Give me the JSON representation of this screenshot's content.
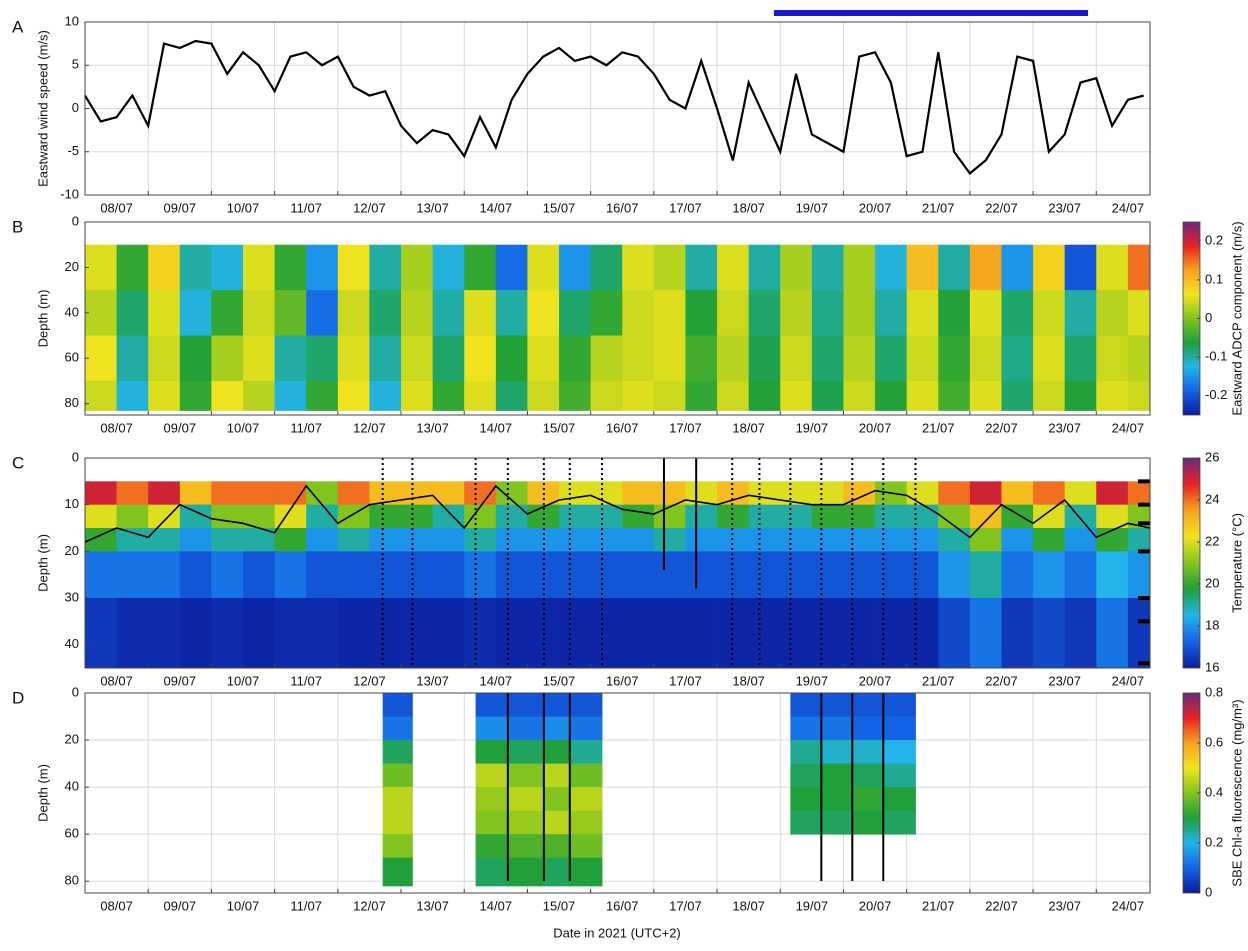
{
  "x_axis": {
    "xlim": [
      8,
      24.85
    ],
    "xlabel": "Date in 2021 (UTC+2)",
    "xticks": [
      {
        "value": 8,
        "label": "08/07"
      },
      {
        "value": 9,
        "label": "09/07"
      },
      {
        "value": 10,
        "label": "10/07"
      },
      {
        "value": 11,
        "label": "11/07"
      },
      {
        "value": 12,
        "label": "12/07"
      },
      {
        "value": 13,
        "label": "13/07"
      },
      {
        "value": 14,
        "label": "14/07"
      },
      {
        "value": 15,
        "label": "15/07"
      },
      {
        "value": 16,
        "label": "16/07"
      },
      {
        "value": 17,
        "label": "17/07"
      },
      {
        "value": 18,
        "label": "18/07"
      },
      {
        "value": 19,
        "label": "19/07"
      },
      {
        "value": 20,
        "label": "20/07"
      },
      {
        "value": 21,
        "label": "21/07"
      },
      {
        "value": 22,
        "label": "22/07"
      },
      {
        "value": 23,
        "label": "23/07"
      },
      {
        "value": 24,
        "label": "24/07"
      }
    ]
  },
  "colormap": [
    "#0c1a9c",
    "#1464e6",
    "#22b4ea",
    "#1fa03a",
    "#82c41e",
    "#f2e41e",
    "#f6a21e",
    "#e82222",
    "#6a2a82"
  ],
  "chart_data": [
    {
      "type": "line",
      "panel": "A",
      "ylabel": "Eastward wind speed (m/s)",
      "color": "#000000",
      "grid": true,
      "ylim": [
        -10,
        10
      ],
      "yticks": [
        -10,
        -5,
        0,
        5,
        10
      ],
      "highlight": [
        18.9,
        23.87
      ],
      "highlight_color": "#1a1acc",
      "x": [
        8,
        8.25,
        8.5,
        8.75,
        9,
        9.25,
        9.5,
        9.75,
        10,
        10.25,
        10.5,
        10.75,
        11,
        11.25,
        11.5,
        11.75,
        12,
        12.25,
        12.5,
        12.75,
        13,
        13.25,
        13.5,
        13.75,
        14,
        14.25,
        14.5,
        14.75,
        15,
        15.25,
        15.5,
        15.75,
        16,
        16.25,
        16.5,
        16.75,
        17,
        17.25,
        17.5,
        17.75,
        18,
        18.25,
        18.5,
        18.75,
        19,
        19.25,
        19.5,
        19.75,
        20,
        20.25,
        20.5,
        20.75,
        21,
        21.25,
        21.5,
        21.75,
        22,
        22.25,
        22.5,
        22.75,
        23,
        23.25,
        23.5,
        23.75,
        24,
        24.25,
        24.5,
        24.75
      ],
      "values": [
        1.5,
        -1.5,
        -1,
        1.5,
        -2,
        7.5,
        7,
        7.8,
        7.5,
        4,
        6.5,
        5,
        2,
        6,
        6.5,
        5,
        6,
        2.5,
        1.5,
        2,
        -2,
        -4,
        -2.5,
        -3,
        -5.5,
        -1,
        -4.5,
        1,
        4,
        6,
        7,
        5.5,
        6,
        5,
        6.5,
        6,
        4,
        1,
        0,
        5.5,
        0,
        -6,
        3,
        -1,
        -5,
        4,
        -3,
        -4,
        -5,
        6,
        6.5,
        3,
        -5.5,
        -5,
        6.5,
        -5,
        -7.5,
        -6,
        -3,
        6,
        5.5,
        -5,
        -3,
        3,
        3.5,
        -2,
        1,
        1.5
      ]
    },
    {
      "type": "heatmap",
      "panel": "B",
      "ylabel": "Depth (m)",
      "ylim": [
        0,
        85
      ],
      "yticks": [
        0,
        20,
        40,
        60,
        80
      ],
      "y_reversed": true,
      "clim": [
        -0.25,
        0.25
      ],
      "cticks": [
        -0.2,
        -0.1,
        0,
        0.1,
        0.2
      ],
      "clabel": "Eastward ADCP component (m/s)",
      "x_edges": [
        8,
        8.5,
        9,
        9.5,
        10,
        10.5,
        11,
        11.5,
        12,
        12.5,
        13,
        13.5,
        14,
        14.5,
        15,
        15.5,
        16,
        16.5,
        17,
        17.5,
        18,
        18.5,
        19,
        19.5,
        20,
        20.5,
        21,
        21.5,
        22,
        22.5,
        23,
        23.5,
        24,
        24.5,
        24.85
      ],
      "depth_edges": [
        10,
        30,
        50,
        70,
        83
      ],
      "z": [
        [
          0.05,
          -0.05,
          0.08,
          -0.1,
          -0.12,
          0.05,
          -0.05,
          -0.15,
          0.06,
          -0.1,
          0.02,
          -0.12,
          -0.05,
          -0.18,
          0.05,
          -0.15,
          -0.08,
          0.05,
          0.03,
          -0.1,
          0.05,
          -0.1,
          0.02,
          -0.1,
          0.02,
          -0.12,
          0.1,
          -0.1,
          0.12,
          -0.15,
          0.08,
          -0.2,
          0.05,
          0.15
        ],
        [
          0.03,
          -0.08,
          0.05,
          -0.12,
          -0.05,
          0.04,
          -0.02,
          -0.18,
          0.04,
          -0.08,
          0.03,
          -0.1,
          0.05,
          -0.1,
          0.06,
          -0.08,
          -0.05,
          0.04,
          0.05,
          -0.06,
          0.04,
          -0.08,
          0.03,
          -0.09,
          0.02,
          -0.1,
          0.05,
          -0.06,
          0.05,
          -0.08,
          0.04,
          -0.1,
          0.03,
          0.05
        ],
        [
          0.06,
          -0.1,
          0.04,
          -0.06,
          0.02,
          0.05,
          -0.1,
          -0.08,
          0.05,
          -0.1,
          0.04,
          -0.08,
          0.06,
          -0.06,
          0.05,
          -0.05,
          0.03,
          0.04,
          0.05,
          -0.04,
          0.03,
          -0.07,
          0.04,
          -0.08,
          0.03,
          -0.08,
          0.04,
          -0.05,
          0.04,
          -0.09,
          0.05,
          -0.08,
          0.04,
          0.03
        ],
        [
          0.04,
          -0.12,
          0.05,
          -0.05,
          0.06,
          0.03,
          -0.12,
          -0.05,
          0.06,
          -0.12,
          0.05,
          -0.05,
          0.05,
          -0.08,
          0.04,
          -0.04,
          0.04,
          0.05,
          0.04,
          -0.05,
          0.04,
          -0.06,
          0.05,
          -0.07,
          0.04,
          -0.06,
          0.05,
          -0.04,
          0.05,
          -0.08,
          0.04,
          -0.06,
          0.05,
          0.04
        ]
      ]
    },
    {
      "type": "heatmap",
      "panel": "C",
      "ylabel": "Depth (m)",
      "ylim": [
        0,
        45
      ],
      "yticks": [
        0,
        10,
        20,
        30,
        40
      ],
      "y_reversed": true,
      "clim": [
        16,
        26
      ],
      "cticks": [
        16,
        18,
        20,
        22,
        24,
        26
      ],
      "clabel": "Temperature (°C)",
      "x_edges": [
        8,
        8.5,
        9,
        9.5,
        10,
        10.5,
        11,
        11.5,
        12,
        12.5,
        13,
        13.5,
        14,
        14.5,
        15,
        15.5,
        16,
        16.5,
        17,
        17.5,
        18,
        18.5,
        19,
        19.5,
        20,
        20.5,
        21,
        21.5,
        22,
        22.5,
        23,
        23.5,
        24,
        24.5,
        24.85
      ],
      "depth_edges": [
        5,
        10,
        15,
        20,
        30,
        45
      ],
      "z": [
        [
          25,
          24,
          25,
          23,
          24,
          24,
          24,
          21,
          24,
          23,
          23,
          23,
          24,
          21,
          23,
          22,
          22,
          23,
          23,
          22,
          23,
          22,
          22,
          22,
          23,
          21,
          22,
          24,
          25,
          23,
          24,
          22,
          25,
          24
        ],
        [
          22,
          21,
          22,
          19,
          21,
          21,
          22,
          19,
          21,
          20,
          20,
          19,
          21,
          19,
          20,
          19,
          19,
          20,
          21,
          19,
          20,
          19,
          19,
          20,
          20,
          19,
          19,
          21,
          23,
          20,
          22,
          19,
          22,
          21
        ],
        [
          20,
          19,
          19,
          18,
          19,
          19,
          20,
          18,
          19,
          18,
          18,
          18,
          19,
          18,
          18,
          18,
          18,
          18,
          19,
          18,
          18,
          18,
          18,
          18,
          18,
          18,
          18,
          19,
          21,
          18,
          20,
          18,
          20,
          19
        ],
        [
          17.5,
          17.5,
          17.5,
          17,
          17.5,
          17,
          17.5,
          17,
          17,
          17,
          17,
          17,
          17.5,
          17,
          17,
          17,
          17,
          17,
          17,
          17,
          17,
          17,
          17,
          17,
          17,
          17,
          17,
          18,
          19,
          17.5,
          18,
          17.5,
          18.5,
          18
        ],
        [
          16.5,
          16.3,
          16.3,
          16.2,
          16.3,
          16.2,
          16.3,
          16.3,
          16.2,
          16.2,
          16.2,
          16.2,
          16.3,
          16.2,
          16.2,
          16.2,
          16.2,
          16.2,
          16.2,
          16.2,
          16.2,
          16.2,
          16.2,
          16.2,
          16.2,
          16.2,
          16.2,
          16.8,
          17.5,
          16.5,
          16.8,
          16.5,
          17.5,
          16.5
        ]
      ],
      "contour": {
        "x": [
          8,
          8.5,
          9,
          9.5,
          10,
          10.5,
          11,
          11.5,
          12,
          12.5,
          13,
          13.5,
          14,
          14.5,
          15,
          15.5,
          16,
          16.5,
          17,
          17.5,
          18,
          18.5,
          19,
          19.5,
          20,
          20.5,
          21,
          21.5,
          22,
          22.5,
          23,
          23.5,
          24,
          24.5,
          24.85
        ],
        "depth": [
          18,
          15,
          17,
          10,
          13,
          14,
          16,
          6,
          14,
          10,
          9,
          8,
          15,
          6,
          12,
          9,
          8,
          11,
          12,
          9,
          10,
          8,
          9,
          10,
          10,
          7,
          8,
          12,
          17,
          10,
          14,
          9,
          17,
          14,
          15
        ]
      },
      "profile_times": [
        12.71,
        13.18,
        14.18,
        14.69,
        15.26,
        15.67,
        16.18,
        18.24,
        18.67,
        19.16,
        19.65,
        20.14,
        20.63,
        21.14
      ],
      "solid_lines": {
        "x": [
          17.16,
          17.67
        ],
        "depth": [
          24,
          28
        ]
      },
      "sensor_depths": [
        5,
        10,
        14,
        20,
        30,
        35,
        44
      ]
    },
    {
      "type": "heatmap",
      "panel": "D",
      "ylabel": "Depth (m)",
      "ylim": [
        0,
        85
      ],
      "yticks": [
        0,
        20,
        40,
        60,
        80
      ],
      "y_reversed": true,
      "grid": true,
      "clim": [
        0,
        0.8
      ],
      "cticks": [
        0,
        0.2,
        0.4,
        0.6,
        0.8
      ],
      "clabel": "SBE Chl-a fluorescence (mg/m³)",
      "x_edges": [
        12.71,
        13.18,
        14.18,
        14.69,
        15.26,
        15.67,
        16.18,
        19.16,
        19.65,
        20.14,
        20.63,
        21.14
      ],
      "depth_edges": [
        0,
        10,
        20,
        30,
        40,
        50,
        60,
        70,
        82
      ],
      "z": [
        [
          0.08,
          null,
          0.08,
          0.08,
          0.08,
          0.08,
          null,
          0.08,
          0.08,
          0.08,
          0.08
        ],
        [
          0.12,
          null,
          0.15,
          0.12,
          0.15,
          0.12,
          null,
          0.12,
          0.12,
          0.1,
          0.1
        ],
        [
          0.28,
          null,
          0.3,
          0.28,
          0.3,
          0.25,
          null,
          0.25,
          0.22,
          0.22,
          0.2
        ],
        [
          0.38,
          null,
          0.45,
          0.4,
          0.45,
          0.38,
          null,
          0.28,
          0.3,
          0.28,
          0.25
        ],
        [
          0.45,
          null,
          0.42,
          0.45,
          0.4,
          0.45,
          null,
          0.3,
          0.3,
          0.32,
          0.3
        ],
        [
          0.45,
          null,
          0.4,
          0.42,
          0.45,
          0.42,
          null,
          0.28,
          0.28,
          0.3,
          0.28
        ],
        [
          0.4,
          null,
          0.32,
          0.35,
          0.35,
          0.38,
          null,
          null,
          null,
          null,
          null
        ],
        [
          0.3,
          null,
          0.28,
          0.3,
          0.28,
          0.3,
          null,
          null,
          null,
          null,
          null
        ]
      ],
      "profile_times": [
        14.69,
        15.26,
        15.67,
        19.65,
        20.14,
        20.63
      ]
    }
  ]
}
